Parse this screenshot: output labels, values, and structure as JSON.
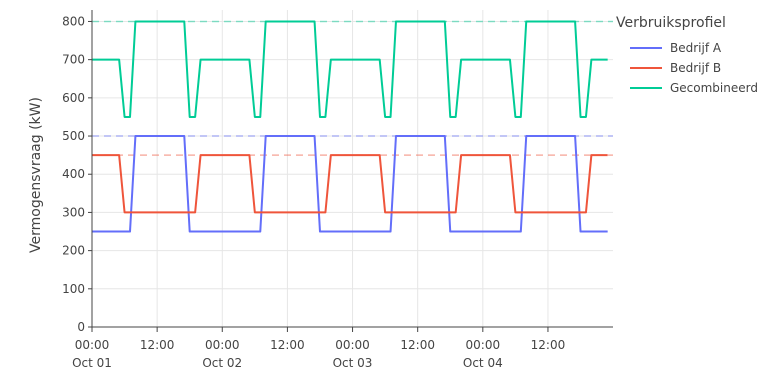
{
  "chart_data": {
    "type": "line",
    "title": "",
    "xlabel": "",
    "ylabel": "Vermogensvraag (kW)",
    "ylim": [
      0,
      830
    ],
    "yticks": [
      0,
      100,
      200,
      300,
      400,
      500,
      600,
      700,
      800
    ],
    "xlim": [
      "2023-10-01T00:00",
      "2023-10-04T23:59"
    ],
    "xticks": [
      {
        "t": "2023-10-01T00:00",
        "line1": "00:00",
        "line2": "Oct 01"
      },
      {
        "t": "2023-10-01T12:00",
        "line1": "12:00",
        "line2": ""
      },
      {
        "t": "2023-10-02T00:00",
        "line1": "00:00",
        "line2": "Oct 02"
      },
      {
        "t": "2023-10-02T12:00",
        "line1": "12:00",
        "line2": ""
      },
      {
        "t": "2023-10-03T00:00",
        "line1": "00:00",
        "line2": "Oct 03"
      },
      {
        "t": "2023-10-03T12:00",
        "line1": "12:00",
        "line2": ""
      },
      {
        "t": "2023-10-04T00:00",
        "line1": "00:00",
        "line2": "Oct 04"
      },
      {
        "t": "2023-10-04T12:00",
        "line1": "12:00",
        "line2": ""
      }
    ],
    "grid": true,
    "legend": {
      "title": "Verbruiksprofiel",
      "position": "right"
    },
    "reference_lines": [
      {
        "y": 800,
        "color": "#00cc96"
      },
      {
        "y": 500,
        "color": "#636efa"
      },
      {
        "y": 450,
        "color": "#ef553b"
      }
    ],
    "series": [
      {
        "name": "Bedrijf A",
        "color": "#636efa",
        "x": [
          "2023-10-01T00:00",
          "2023-10-01T07:00",
          "2023-10-01T08:00",
          "2023-10-01T17:00",
          "2023-10-01T18:00",
          "2023-10-02T07:00",
          "2023-10-02T08:00",
          "2023-10-02T17:00",
          "2023-10-02T18:00",
          "2023-10-03T07:00",
          "2023-10-03T08:00",
          "2023-10-03T17:00",
          "2023-10-03T18:00",
          "2023-10-04T07:00",
          "2023-10-04T08:00",
          "2023-10-04T17:00",
          "2023-10-04T18:00",
          "2023-10-04T23:00"
        ],
        "y": [
          250,
          250,
          500,
          500,
          250,
          250,
          500,
          500,
          250,
          250,
          500,
          500,
          250,
          250,
          500,
          500,
          250,
          250
        ]
      },
      {
        "name": "Bedrijf B",
        "color": "#ef553b",
        "x": [
          "2023-10-01T00:00",
          "2023-10-01T05:00",
          "2023-10-01T06:00",
          "2023-10-01T19:00",
          "2023-10-01T20:00",
          "2023-10-02T05:00",
          "2023-10-02T06:00",
          "2023-10-02T19:00",
          "2023-10-02T20:00",
          "2023-10-03T05:00",
          "2023-10-03T06:00",
          "2023-10-03T19:00",
          "2023-10-03T20:00",
          "2023-10-04T05:00",
          "2023-10-04T06:00",
          "2023-10-04T19:00",
          "2023-10-04T20:00",
          "2023-10-04T23:00"
        ],
        "y": [
          450,
          450,
          300,
          300,
          450,
          450,
          300,
          300,
          450,
          450,
          300,
          300,
          450,
          450,
          300,
          300,
          450,
          450
        ]
      },
      {
        "name": "Gecombineerd",
        "color": "#00cc96",
        "x": [
          "2023-10-01T00:00",
          "2023-10-01T05:00",
          "2023-10-01T06:00",
          "2023-10-01T07:00",
          "2023-10-01T08:00",
          "2023-10-01T17:00",
          "2023-10-01T18:00",
          "2023-10-01T19:00",
          "2023-10-01T20:00",
          "2023-10-02T05:00",
          "2023-10-02T06:00",
          "2023-10-02T07:00",
          "2023-10-02T08:00",
          "2023-10-02T17:00",
          "2023-10-02T18:00",
          "2023-10-02T19:00",
          "2023-10-02T20:00",
          "2023-10-03T05:00",
          "2023-10-03T06:00",
          "2023-10-03T07:00",
          "2023-10-03T08:00",
          "2023-10-03T17:00",
          "2023-10-03T18:00",
          "2023-10-03T19:00",
          "2023-10-03T20:00",
          "2023-10-04T05:00",
          "2023-10-04T06:00",
          "2023-10-04T07:00",
          "2023-10-04T08:00",
          "2023-10-04T17:00",
          "2023-10-04T18:00",
          "2023-10-04T19:00",
          "2023-10-04T20:00",
          "2023-10-04T23:00"
        ],
        "y": [
          700,
          700,
          550,
          550,
          800,
          800,
          550,
          550,
          700,
          700,
          550,
          550,
          800,
          800,
          550,
          550,
          700,
          700,
          550,
          550,
          800,
          800,
          550,
          550,
          700,
          700,
          550,
          550,
          800,
          800,
          550,
          550,
          700,
          700
        ]
      }
    ]
  }
}
